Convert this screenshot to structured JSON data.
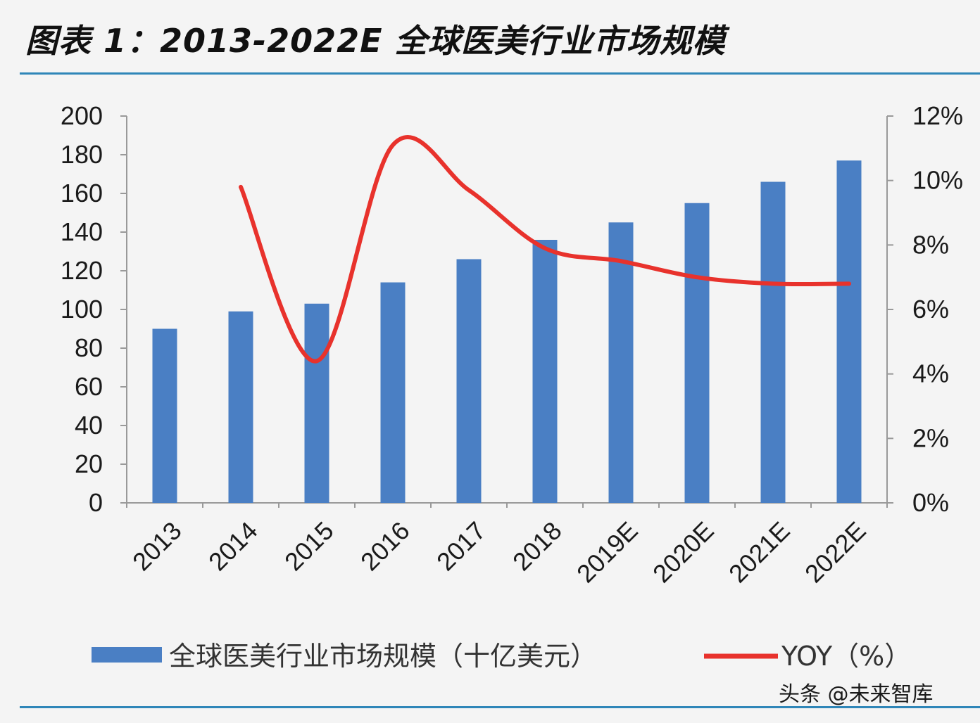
{
  "title": "图表 1：2013-2022E 全球医美行业市场规模",
  "watermark": "头条 @未来智库",
  "colors": {
    "bar": "#4a7fc4",
    "line": "#e8322c",
    "accent_rule": "#2f86b8"
  },
  "chart_data": {
    "type": "bar",
    "categories": [
      "2013",
      "2014",
      "2015",
      "2016",
      "2017",
      "2018",
      "2019E",
      "2020E",
      "2021E",
      "2022E"
    ],
    "series": [
      {
        "name": "全球医美行业市场规模（十亿美元）",
        "type": "bar",
        "axis": "left",
        "values": [
          90,
          99,
          103,
          114,
          126,
          136,
          145,
          155,
          166,
          177
        ]
      },
      {
        "name": "YOY（%）",
        "type": "line",
        "axis": "right",
        "values": [
          null,
          9.8,
          4.4,
          11.1,
          9.7,
          7.9,
          7.5,
          7.0,
          6.8,
          6.8
        ]
      }
    ],
    "y_left": {
      "min": 0,
      "max": 200,
      "ticks": [
        "0",
        "20",
        "40",
        "60",
        "80",
        "100",
        "120",
        "140",
        "160",
        "180",
        "200"
      ]
    },
    "y_right": {
      "min": 0,
      "max": 12,
      "ticks": [
        "0%",
        "2%",
        "4%",
        "6%",
        "8%",
        "10%",
        "12%"
      ]
    },
    "legend_position": "bottom"
  }
}
